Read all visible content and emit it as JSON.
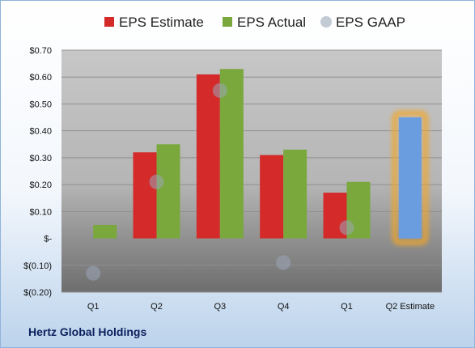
{
  "chart_data": {
    "type": "bar",
    "categories": [
      "Q1",
      "Q2",
      "Q3",
      "Q4",
      "Q1",
      "Q2 Estimate"
    ],
    "series": [
      {
        "name": "EPS Estimate",
        "color": "#d42a2a",
        "values": [
          null,
          0.32,
          0.61,
          0.31,
          0.17,
          null
        ]
      },
      {
        "name": "EPS Actual",
        "color": "#7aa83d",
        "values": [
          0.05,
          0.35,
          0.63,
          0.33,
          0.21,
          null
        ]
      },
      {
        "name": "EPS GAAP",
        "color": "#9aa6b8",
        "marker": "circle",
        "values": [
          -0.13,
          0.21,
          0.55,
          -0.09,
          0.04,
          null
        ]
      }
    ],
    "estimate_bar": {
      "category": "Q2 Estimate",
      "value": 0.45,
      "color": "#6a9de0",
      "glow": "#f5a623"
    },
    "ylim": [
      -0.2,
      0.7
    ],
    "yticks": [
      {
        "value": 0.7,
        "label": "$0.70"
      },
      {
        "value": 0.6,
        "label": "$0.60"
      },
      {
        "value": 0.5,
        "label": "$0.50"
      },
      {
        "value": 0.4,
        "label": "$0.40"
      },
      {
        "value": 0.3,
        "label": "$0.30"
      },
      {
        "value": 0.2,
        "label": "$0.20"
      },
      {
        "value": 0.1,
        "label": "$0.10"
      },
      {
        "value": 0.0,
        "label": "$-"
      },
      {
        "value": -0.1,
        "label": "$(0.10)"
      },
      {
        "value": -0.2,
        "label": "$(0.20)"
      }
    ],
    "grid": true,
    "legend_position": "top"
  },
  "footer": {
    "company": "Hertz Global Holdings"
  }
}
